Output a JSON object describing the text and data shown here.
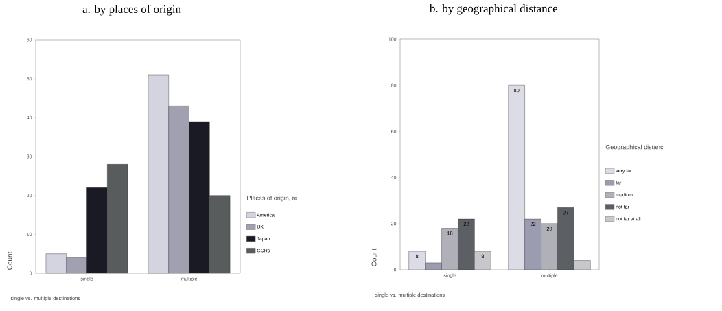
{
  "chart_data": [
    {
      "type": "bar",
      "title": "a. by places of origin",
      "xlabel": "single vs. multiple destinations",
      "ylabel": "Count",
      "legend_title": "Places of origin, re",
      "legend": "right",
      "categories": [
        "single",
        "multiple"
      ],
      "ylim": [
        0,
        60
      ],
      "yticks": [
        0,
        10,
        20,
        30,
        40,
        50,
        60
      ],
      "series": [
        {
          "name": "America",
          "color": "#d4d4e0",
          "values": [
            5,
            51
          ]
        },
        {
          "name": "UK",
          "color": "#a0a0b0",
          "values": [
            4,
            43
          ]
        },
        {
          "name": "Japan",
          "color": "#1a1a24",
          "values": [
            22,
            39
          ]
        },
        {
          "name": "GCRs",
          "color": "#585c5c",
          "values": [
            28,
            20
          ]
        }
      ]
    },
    {
      "type": "bar",
      "title": "b. by geographical distance",
      "xlabel": "single vs. multiple destinations",
      "ylabel": "Count",
      "legend_title": "Geographical distanc",
      "legend": "right",
      "categories": [
        "single",
        "multiple"
      ],
      "ylim": [
        0,
        100
      ],
      "yticks": [
        0,
        20,
        40,
        60,
        80,
        100
      ],
      "series": [
        {
          "name": "very far",
          "color": "#dcdce6",
          "values": [
            8,
            80
          ],
          "value_labels": [
            "8",
            "80"
          ]
        },
        {
          "name": "far",
          "color": "#9c9cb0",
          "values": [
            3,
            22
          ],
          "value_labels": [
            null,
            "22"
          ]
        },
        {
          "name": "medium",
          "color": "#b0b0b8",
          "values": [
            18,
            20
          ],
          "value_labels": [
            "18",
            "20"
          ]
        },
        {
          "name": "not far",
          "color": "#5c6064",
          "values": [
            22,
            27
          ],
          "value_labels": [
            "22",
            "27"
          ]
        },
        {
          "name": "not far at all",
          "color": "#c8c8cc",
          "values": [
            8,
            4
          ],
          "value_labels": [
            "8",
            null
          ]
        }
      ]
    }
  ]
}
